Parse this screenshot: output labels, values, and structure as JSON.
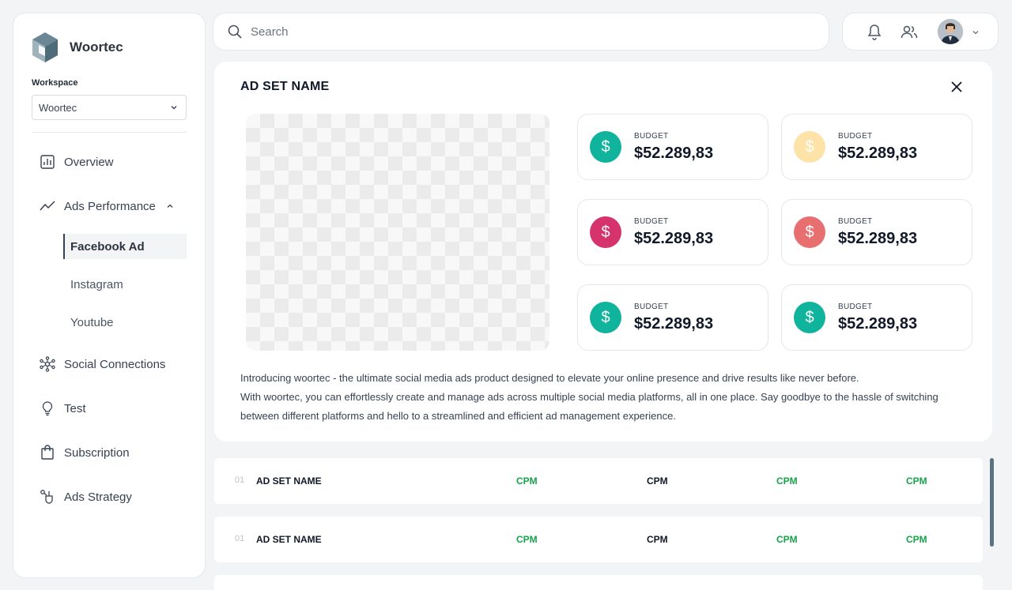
{
  "brand": {
    "name": "Woortec"
  },
  "workspace": {
    "label": "Workspace",
    "value": "Woortec"
  },
  "nav": {
    "overview": "Overview",
    "ads_performance": "Ads Performance",
    "sub": [
      "Facebook Ad",
      "Instagram",
      "Youtube"
    ],
    "social_connections": "Social Connections",
    "test": "Test",
    "subscription": "Subscription",
    "ads_strategy": "Ads Strategy"
  },
  "search": {
    "placeholder": "Search"
  },
  "card": {
    "title": "AD SET NAME",
    "stats": [
      {
        "label": "BUDGET",
        "value": "$52.289,83",
        "color": "#10b39b"
      },
      {
        "label": "BUDGET",
        "value": "$52.289,83",
        "color": "#fde3a7"
      },
      {
        "label": "BUDGET",
        "value": "$52.289,83",
        "color": "#d6336c"
      },
      {
        "label": "BUDGET",
        "value": "$52.289,83",
        "color": "#e76f6f"
      },
      {
        "label": "BUDGET",
        "value": "$52.289,83",
        "color": "#10b39b"
      },
      {
        "label": "BUDGET",
        "value": "$52.289,83",
        "color": "#10b39b"
      }
    ],
    "currency_symbol": "$",
    "description_1": "Introducing woortec - the ultimate social media ads product designed to elevate your online presence and drive results like never before.",
    "description_2": "With woortec, you can effortlessly create and manage ads across multiple social media platforms, all in one place. Say goodbye to the hassle of switching between different platforms and hello to a streamlined and efficient ad management experience."
  },
  "rows": [
    {
      "num": "01",
      "name": "AD SET NAME",
      "c1": "CPM",
      "c2": "CPM",
      "c3": "CPM",
      "c4": "CPM"
    },
    {
      "num": "01",
      "name": "AD SET NAME",
      "c1": "CPM",
      "c2": "CPM",
      "c3": "CPM",
      "c4": "CPM"
    }
  ]
}
